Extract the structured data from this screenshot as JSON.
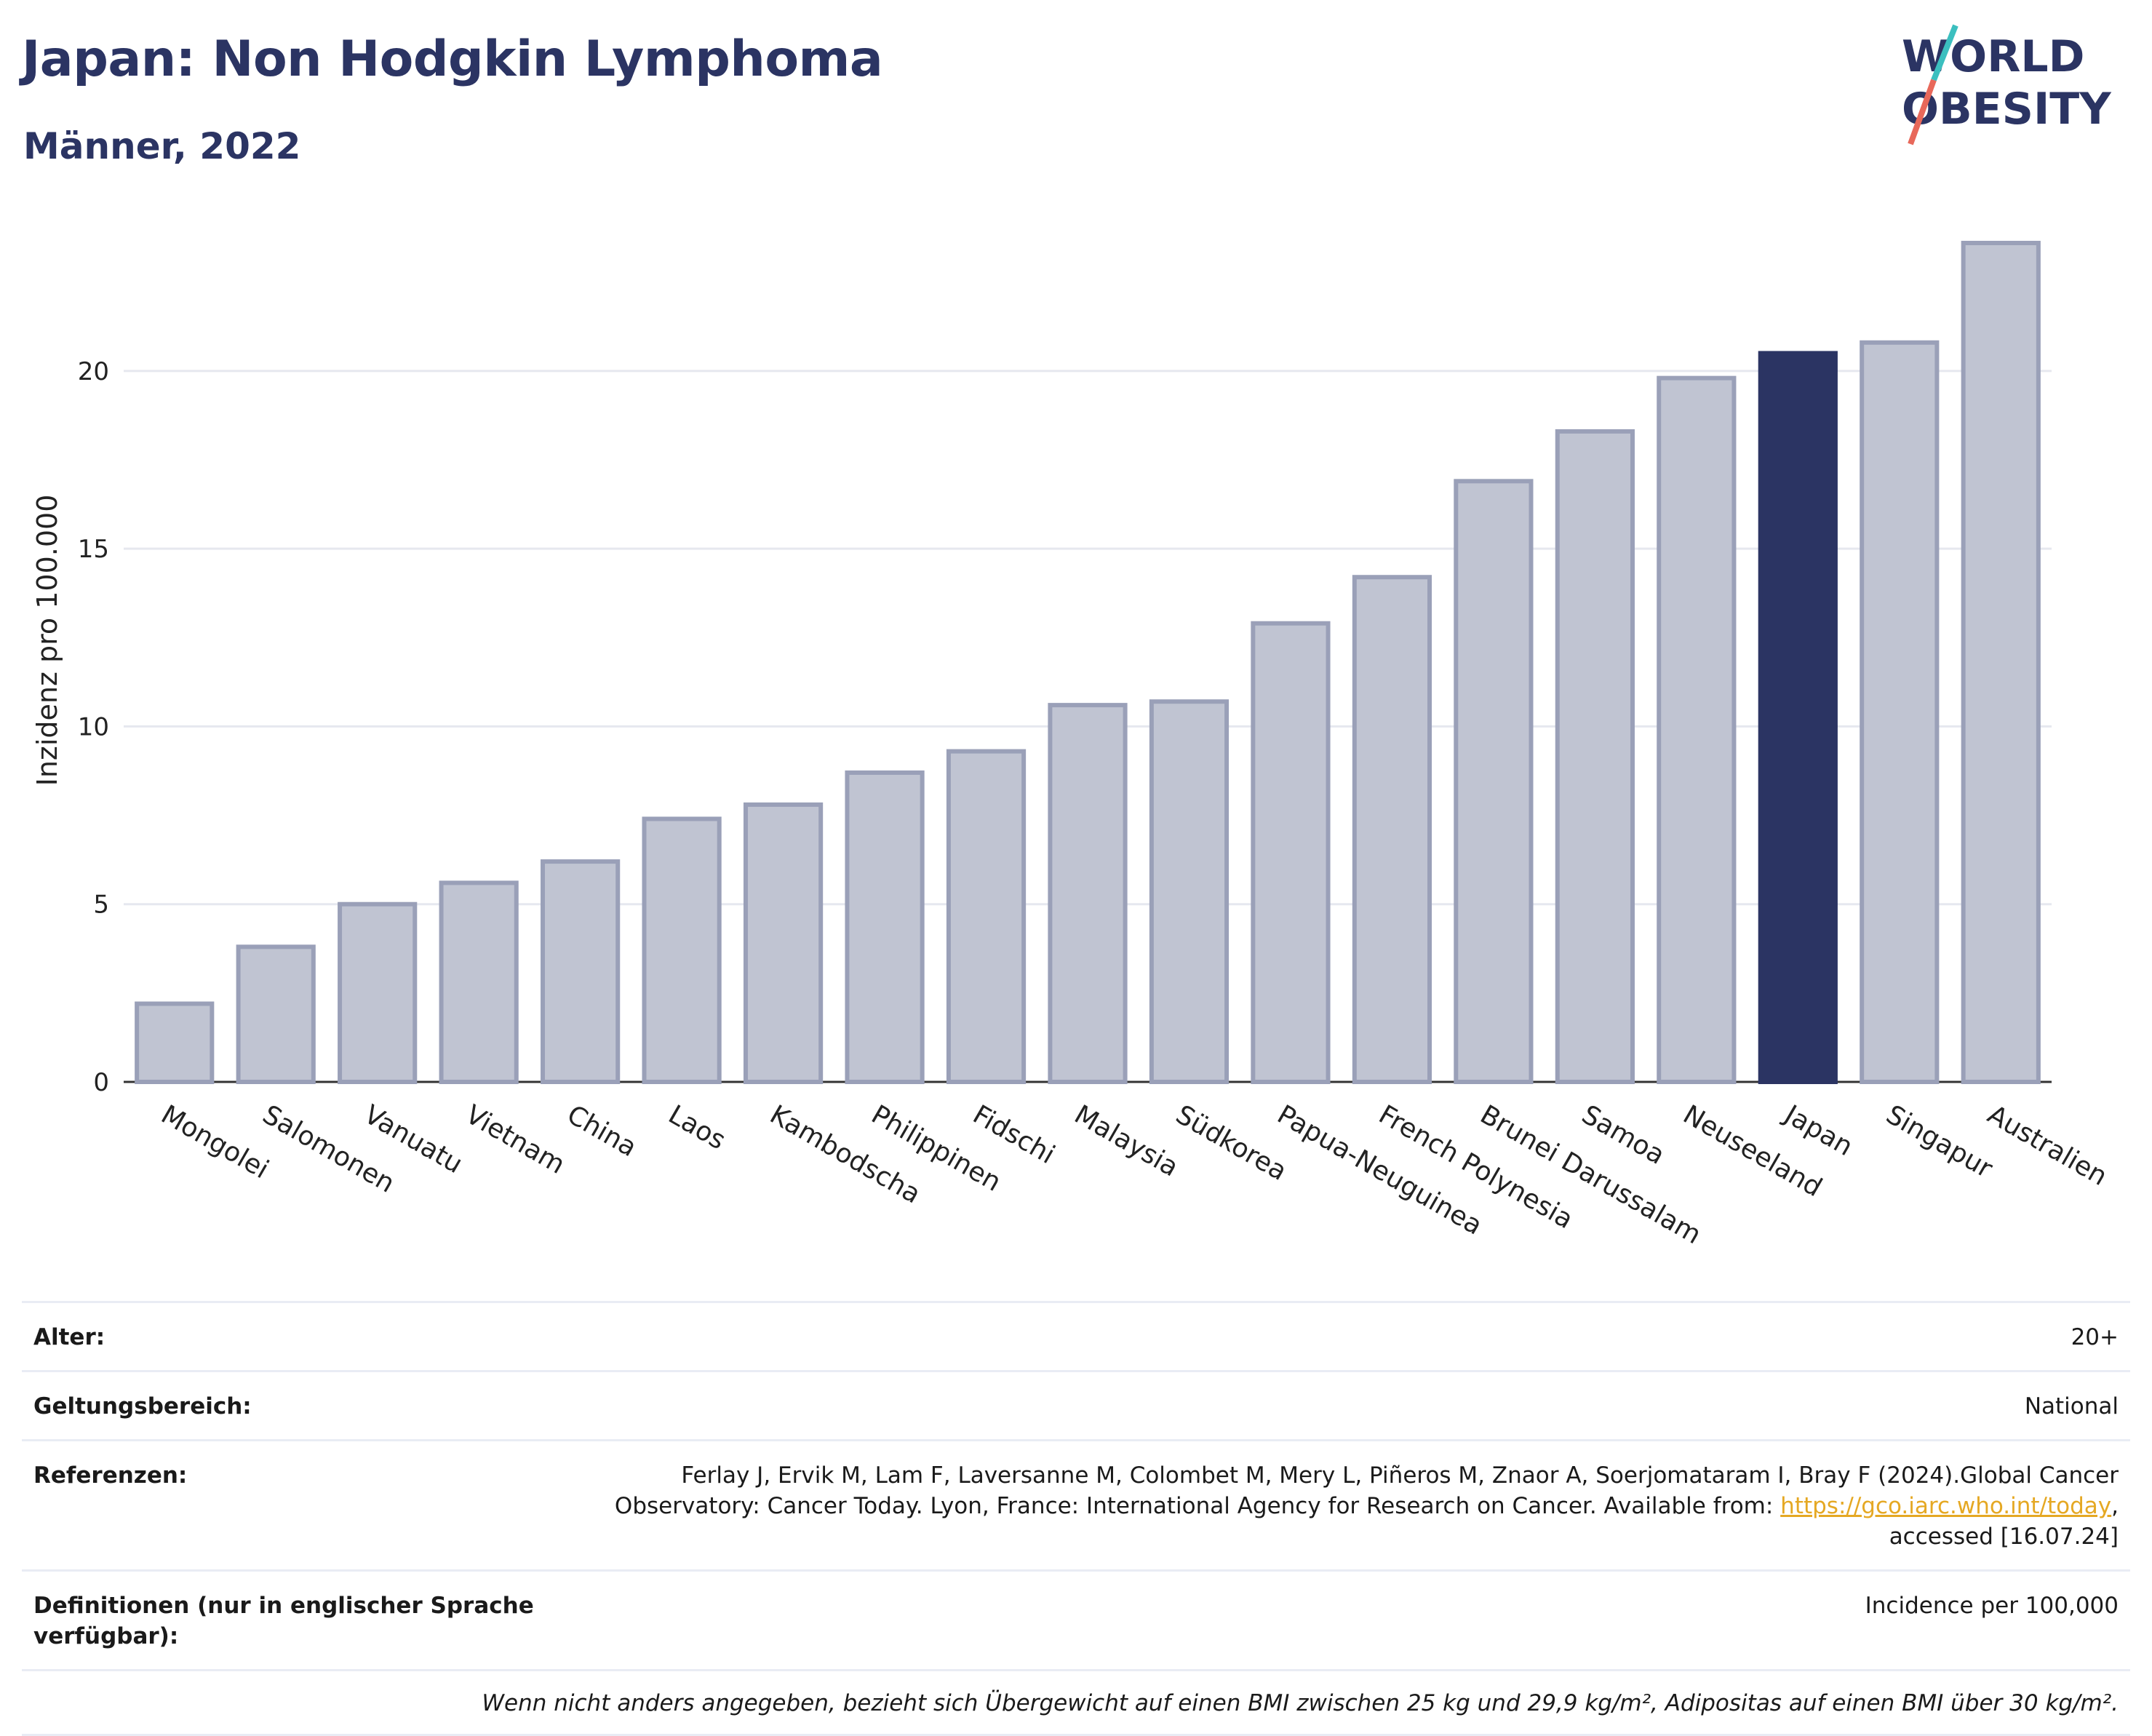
{
  "header": {
    "title": "Japan: Non Hodgkin Lymphoma",
    "subtitle": "Männer, 2022"
  },
  "logo": {
    "line1": "WORLD",
    "line2": "OBESITY"
  },
  "chart_data": {
    "type": "bar",
    "categories": [
      "Mongolei",
      "Salomonen",
      "Vanuatu",
      "Vietnam",
      "China",
      "Laos",
      "Kambodscha",
      "Philippinen",
      "Fidschi",
      "Malaysia",
      "Südkorea",
      "Papua-Neuguinea",
      "French Polynesia",
      "Brunei Darussalam",
      "Samoa",
      "Neuseeland",
      "Japan",
      "Singapur",
      "Australien"
    ],
    "values": [
      2.2,
      3.8,
      5.0,
      5.6,
      6.2,
      7.4,
      7.8,
      8.7,
      9.3,
      10.6,
      10.7,
      12.9,
      14.2,
      16.9,
      18.3,
      19.8,
      20.5,
      20.8,
      23.6
    ],
    "highlight": "Japan",
    "ylabel": "Inzidenz pro 100.000",
    "xlabel": "",
    "ylim": [
      0,
      24.5
    ],
    "yticks": [
      0,
      5,
      10,
      15,
      20
    ],
    "colors": {
      "bar": "#c0c4d2",
      "bar_border": "#9aa0b8",
      "highlight": "#2b3463"
    },
    "grid": true
  },
  "info": {
    "age_label": "Alter:",
    "age_value": "20+",
    "scope_label": "Geltungsbereich:",
    "scope_value": "National",
    "refs_label": "Referenzen:",
    "refs_text_1": "Ferlay J, Ervik M, Lam F, Laversanne M, Colombet M, Mery L, Piñeros M, Znaor A, Soerjomataram I, Bray F (2024).Global Cancer Observatory: Cancer Today. Lyon, France: International Agency for Research on Cancer. Available from: ",
    "refs_link": "https://gco.iarc.who.int/today",
    "refs_text_2": ", accessed [16.07.24]",
    "defs_label": "Definitionen (nur in englischer Sprache verfügbar):",
    "defs_value": "Incidence per 100,000",
    "footnote": "Wenn nicht anders angegeben, bezieht sich Übergewicht auf einen BMI zwischen 25 kg und 29,9 kg/m², Adipositas auf einen BMI über 30 kg/m²."
  }
}
